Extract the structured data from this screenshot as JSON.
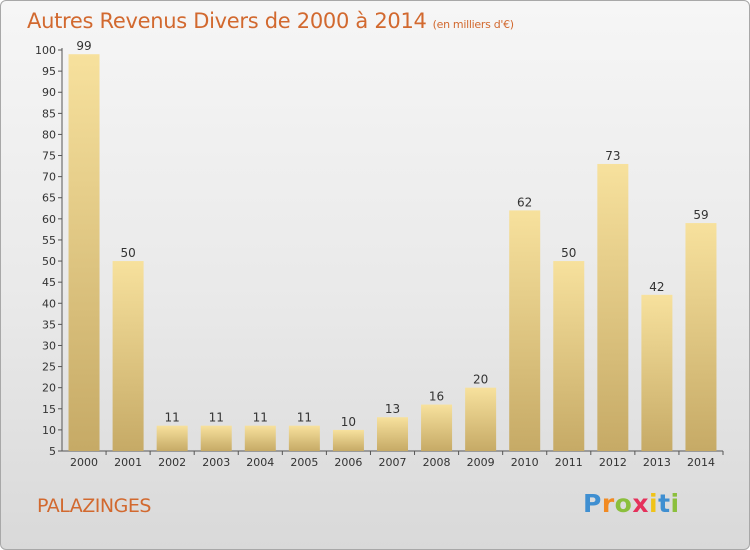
{
  "header": {
    "title": "Autres Revenus Divers de 2000 à 2014",
    "subtitle": "(en milliers d'€)"
  },
  "footer": {
    "location": "PALAZINGES",
    "logo": {
      "letters": [
        "P",
        "r",
        "o",
        "x",
        "i",
        "t",
        "i"
      ]
    }
  },
  "colors": {
    "title": "#d2692f",
    "bar_light": "#f7e19d",
    "bar_dark": "#c6aa66",
    "logo": [
      "#3f8fd1",
      "#f18a22",
      "#8bbf3c",
      "#e5315b",
      "#f0c318",
      "#3f8fd1",
      "#8bbf3c"
    ]
  },
  "chart_data": {
    "type": "bar",
    "categories": [
      "2000",
      "2001",
      "2002",
      "2003",
      "2004",
      "2005",
      "2006",
      "2007",
      "2008",
      "2009",
      "2010",
      "2011",
      "2012",
      "2013",
      "2014"
    ],
    "values": [
      99,
      50,
      11,
      11,
      11,
      11,
      10,
      13,
      16,
      20,
      62,
      50,
      73,
      42,
      59
    ],
    "ylim": [
      5,
      100
    ],
    "yticks": [
      5,
      10,
      15,
      20,
      25,
      30,
      35,
      40,
      45,
      50,
      55,
      60,
      65,
      70,
      75,
      80,
      85,
      90,
      95,
      100
    ],
    "grid": false,
    "data_labels": true
  }
}
